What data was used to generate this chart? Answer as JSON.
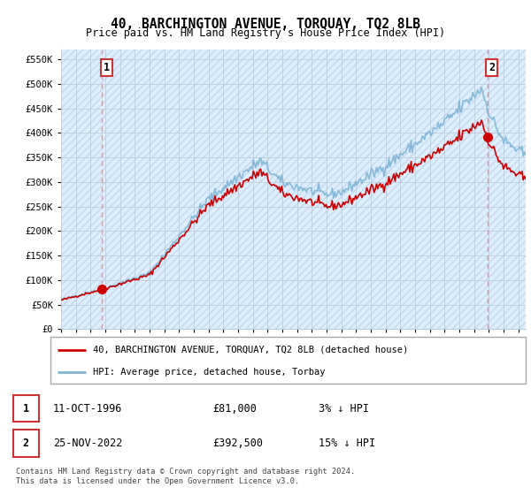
{
  "title": "40, BARCHINGTON AVENUE, TORQUAY, TQ2 8LB",
  "subtitle": "Price paid vs. HM Land Registry's House Price Index (HPI)",
  "ylabel_ticks": [
    "£0",
    "£50K",
    "£100K",
    "£150K",
    "£200K",
    "£250K",
    "£300K",
    "£350K",
    "£400K",
    "£450K",
    "£500K",
    "£550K"
  ],
  "ytick_values": [
    0,
    50000,
    100000,
    150000,
    200000,
    250000,
    300000,
    350000,
    400000,
    450000,
    500000,
    550000
  ],
  "xmin": 1994.0,
  "xmax": 2025.5,
  "ymin": 0,
  "ymax": 570000,
  "sale1_date": 1996.78,
  "sale1_price": 81000,
  "sale2_date": 2022.9,
  "sale2_price": 392500,
  "sale1_label": "1",
  "sale2_label": "2",
  "red_color": "#cc0000",
  "blue_color": "#7eb5d6",
  "dashed_color": "#ff8888",
  "legend_label1": "40, BARCHINGTON AVENUE, TORQUAY, TQ2 8LB (detached house)",
  "legend_label2": "HPI: Average price, detached house, Torbay",
  "table_row1": [
    "1",
    "11-OCT-1996",
    "£81,000",
    "3% ↓ HPI"
  ],
  "table_row2": [
    "2",
    "25-NOV-2022",
    "£392,500",
    "15% ↓ HPI"
  ],
  "footnote": "Contains HM Land Registry data © Crown copyright and database right 2024.\nThis data is licensed under the Open Government Licence v3.0.",
  "bg_color": "#ffffff",
  "plot_bg": "#ddeeff",
  "grid_color": "#bbccdd",
  "hatch_color": "#ddeeff"
}
